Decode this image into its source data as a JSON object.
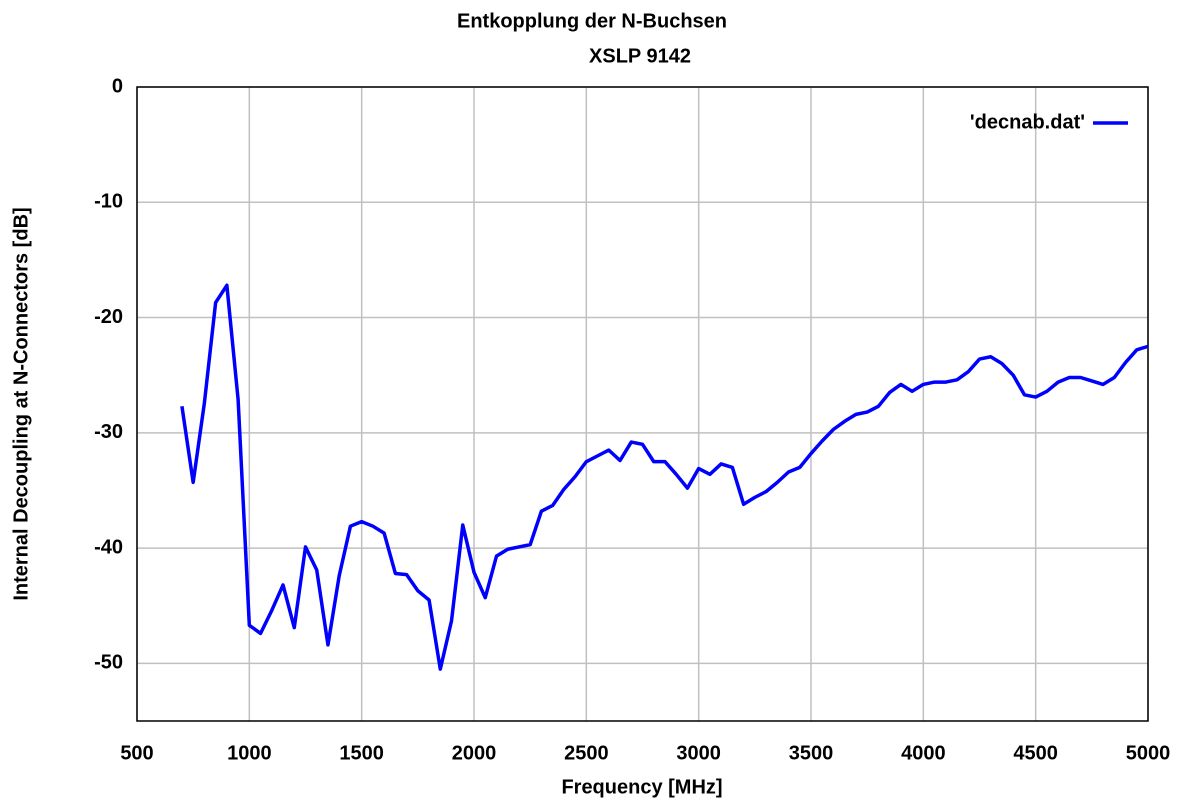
{
  "chart_data": {
    "type": "line",
    "title": "Entkopplung der N-Buchsen",
    "subtitle": "XSLP 9142",
    "x_label": "Frequency [MHz]",
    "y_label": "Internal Decoupling at N-Connectors [dB]",
    "x": [
      700,
      750,
      800,
      850,
      900,
      950,
      1000,
      1050,
      1100,
      1150,
      1200,
      1250,
      1300,
      1350,
      1400,
      1450,
      1500,
      1550,
      1600,
      1650,
      1700,
      1750,
      1800,
      1850,
      1900,
      1950,
      2000,
      2050,
      2100,
      2150,
      2200,
      2250,
      2300,
      2350,
      2400,
      2450,
      2500,
      2550,
      2600,
      2650,
      2700,
      2750,
      2800,
      2850,
      2900,
      2950,
      3000,
      3050,
      3100,
      3150,
      3200,
      3250,
      3300,
      3350,
      3400,
      3450,
      3500,
      3550,
      3600,
      3650,
      3700,
      3750,
      3800,
      3850,
      3900,
      3950,
      4000,
      4050,
      4100,
      4150,
      4200,
      4250,
      4300,
      4350,
      4400,
      4450,
      4500,
      4550,
      4600,
      4650,
      4700,
      4750,
      4800,
      4850,
      4900,
      4950,
      5000
    ],
    "series": [
      {
        "name": "'decnab.dat'",
        "color": "#0000ff",
        "values": [
          -27.7,
          -34.3,
          -27.4,
          -18.7,
          -17.2,
          -27.1,
          -46.7,
          -47.4,
          -45.4,
          -43.2,
          -46.9,
          -39.9,
          -41.9,
          -48.4,
          -42.4,
          -38.1,
          -37.7,
          -38.1,
          -38.7,
          -42.2,
          -42.3,
          -43.7,
          -44.5,
          -50.5,
          -46.3,
          -38.0,
          -42.1,
          -44.3,
          -40.7,
          -40.1,
          -39.9,
          -39.7,
          -36.8,
          -36.3,
          -34.9,
          -33.8,
          -32.5,
          -32.0,
          -31.5,
          -32.4,
          -30.8,
          -31.0,
          -32.5,
          -32.5,
          -33.6,
          -34.8,
          -33.1,
          -33.6,
          -32.7,
          -33.0,
          -36.2,
          -35.6,
          -35.1,
          -34.3,
          -33.4,
          -33.0,
          -31.8,
          -30.7,
          -29.7,
          -29.0,
          -28.4,
          -28.2,
          -27.7,
          -26.5,
          -25.8,
          -26.4,
          -25.8,
          -25.6,
          -25.6,
          -25.4,
          -24.7,
          -23.6,
          -23.4,
          -24.0,
          -25.0,
          -26.7,
          -26.9,
          -26.4,
          -25.6,
          -25.2,
          -25.2,
          -25.5,
          -25.8,
          -25.2,
          -23.9,
          -22.8,
          -22.5
        ]
      }
    ],
    "xlim": [
      500,
      5000
    ],
    "xticks": [
      500,
      1000,
      1500,
      2000,
      2500,
      3000,
      3500,
      4000,
      4500,
      5000
    ],
    "ylim": [
      -55,
      0
    ],
    "yticks": [
      0,
      -10,
      -20,
      -30,
      -40,
      -50
    ],
    "grid": true,
    "legend": "top-right"
  }
}
